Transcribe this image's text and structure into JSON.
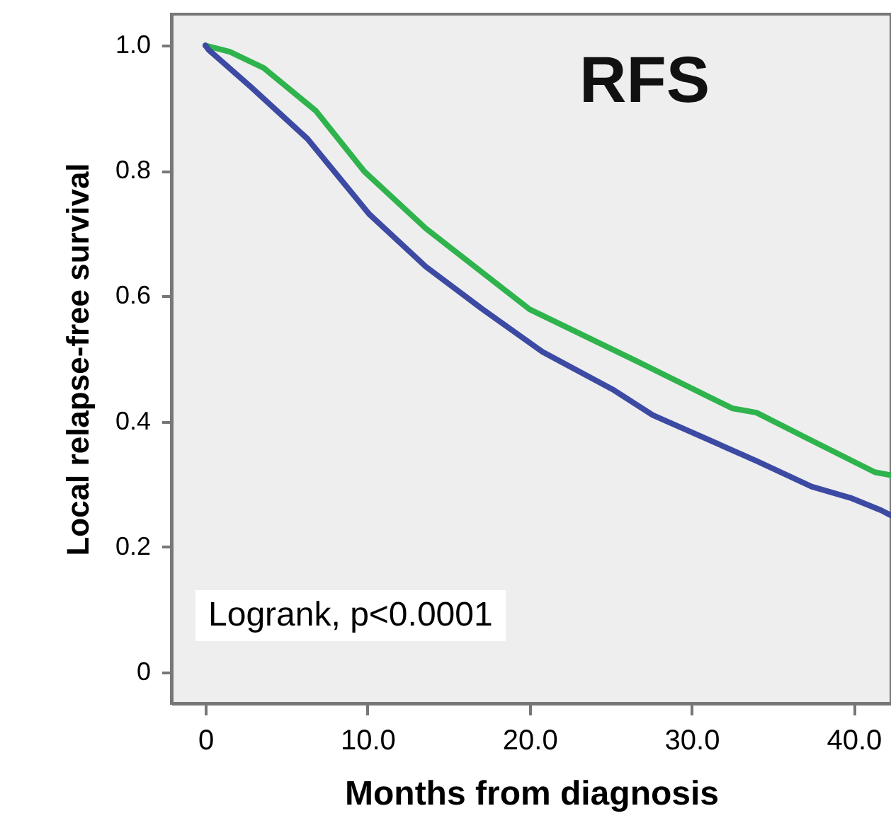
{
  "chart_data": {
    "type": "line",
    "title": "RFS",
    "xlabel": "Months from diagnosis",
    "ylabel": "Local relapse-free survival",
    "annotations": [
      "Logrank, p<0.0001"
    ],
    "series": [
      {
        "color": "#2fb34c",
        "x": [
          0,
          1.5,
          3.6,
          6.8,
          9.8,
          13.6,
          20,
          26.7,
          32.5,
          34,
          36.9,
          41.3,
          42.3
        ],
        "values": [
          1.0,
          0.99,
          0.964,
          0.896,
          0.799,
          0.708,
          0.579,
          0.495,
          0.421,
          0.414,
          0.376,
          0.319,
          0.314
        ]
      },
      {
        "color": "#3d4aa3",
        "x": [
          0,
          0.2,
          2.8,
          6.3,
          10.1,
          13.6,
          17.1,
          20.8,
          25.2,
          27.6,
          34,
          37.4,
          39.8,
          41.7,
          42.3
        ],
        "values": [
          1.0,
          0.993,
          0.934,
          0.851,
          0.731,
          0.647,
          0.579,
          0.511,
          0.45,
          0.41,
          0.337,
          0.296,
          0.278,
          0.258,
          0.25
        ]
      }
    ],
    "xlim": [
      -2.1,
      42.3
    ],
    "ylim": [
      -0.05,
      1.05
    ],
    "xticks": [
      0,
      {
        "value": 10,
        "label": "10.0"
      },
      {
        "value": 20,
        "label": "20.0"
      },
      {
        "value": 30,
        "label": "30.0"
      },
      {
        "value": 40,
        "label": "40.0"
      }
    ],
    "yticks": [
      0,
      0.2,
      0.4,
      0.6,
      0.8,
      {
        "value": 1,
        "label": "1.0"
      }
    ],
    "grid": false,
    "legend": false,
    "marker": "none",
    "line_style": "solid"
  }
}
